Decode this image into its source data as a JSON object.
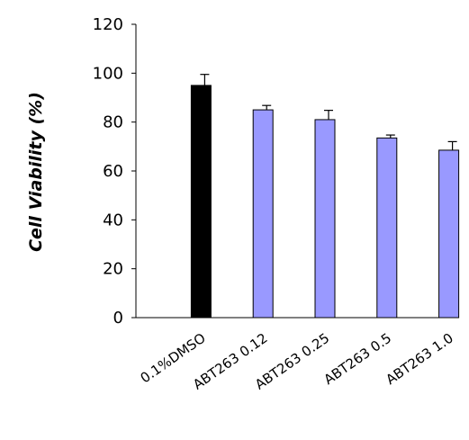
{
  "chart_data": {
    "type": "bar",
    "title": "",
    "xlabel": "",
    "ylabel": "Cell Viability (%)",
    "ylim": [
      0,
      120
    ],
    "yticks": [
      0,
      20,
      40,
      60,
      80,
      100,
      120
    ],
    "grid": false,
    "categories": [
      "0.1%DMSO",
      "ABT263 0.12",
      "ABT263 0.25",
      "ABT263 0.5",
      "ABT263 1.0"
    ],
    "values": [
      95,
      85,
      81,
      73.5,
      68.5
    ],
    "errors": [
      4.5,
      1.8,
      3.8,
      1.2,
      3.5
    ],
    "colors": [
      "#000000",
      "#9999ff",
      "#9999ff",
      "#9999ff",
      "#9999ff"
    ]
  }
}
